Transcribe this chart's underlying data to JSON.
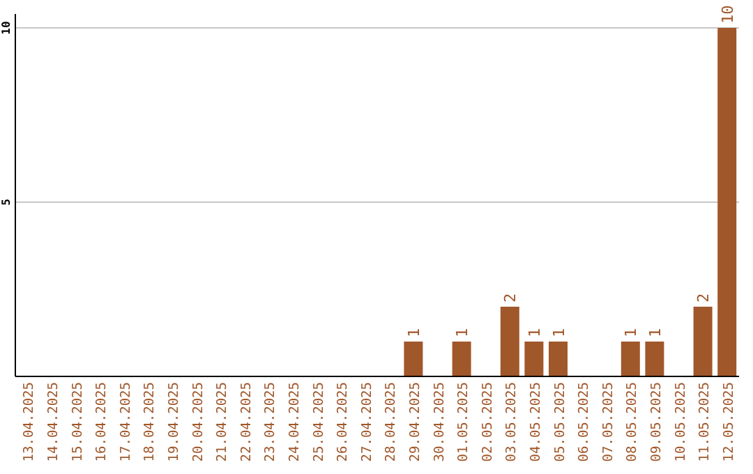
{
  "chart_data": {
    "type": "bar",
    "categories": [
      "13.04.2025",
      "14.04.2025",
      "15.04.2025",
      "16.04.2025",
      "17.04.2025",
      "18.04.2025",
      "19.04.2025",
      "20.04.2025",
      "21.04.2025",
      "22.04.2025",
      "23.04.2025",
      "24.04.2025",
      "25.04.2025",
      "26.04.2025",
      "27.04.2025",
      "28.04.2025",
      "29.04.2025",
      "30.04.2025",
      "01.05.2025",
      "02.05.2025",
      "03.05.2025",
      "04.05.2025",
      "05.05.2025",
      "06.05.2025",
      "07.05.2025",
      "08.05.2025",
      "09.05.2025",
      "10.05.2025",
      "11.05.2025",
      "12.05.2025"
    ],
    "values": [
      0,
      0,
      0,
      0,
      0,
      0,
      0,
      0,
      0,
      0,
      0,
      0,
      0,
      0,
      0,
      0,
      1,
      0,
      1,
      0,
      2,
      1,
      1,
      0,
      0,
      1,
      1,
      0,
      2,
      10
    ],
    "value_labels": [
      null,
      null,
      null,
      null,
      null,
      null,
      null,
      null,
      null,
      null,
      null,
      null,
      null,
      null,
      null,
      null,
      "1",
      null,
      "1",
      null,
      "2",
      "1",
      "1",
      null,
      null,
      "1",
      "1",
      null,
      "2",
      "10"
    ],
    "color": "#a0572a",
    "ylim": [
      0,
      10.4
    ],
    "yticks": [
      5,
      10
    ],
    "grid": "y"
  }
}
